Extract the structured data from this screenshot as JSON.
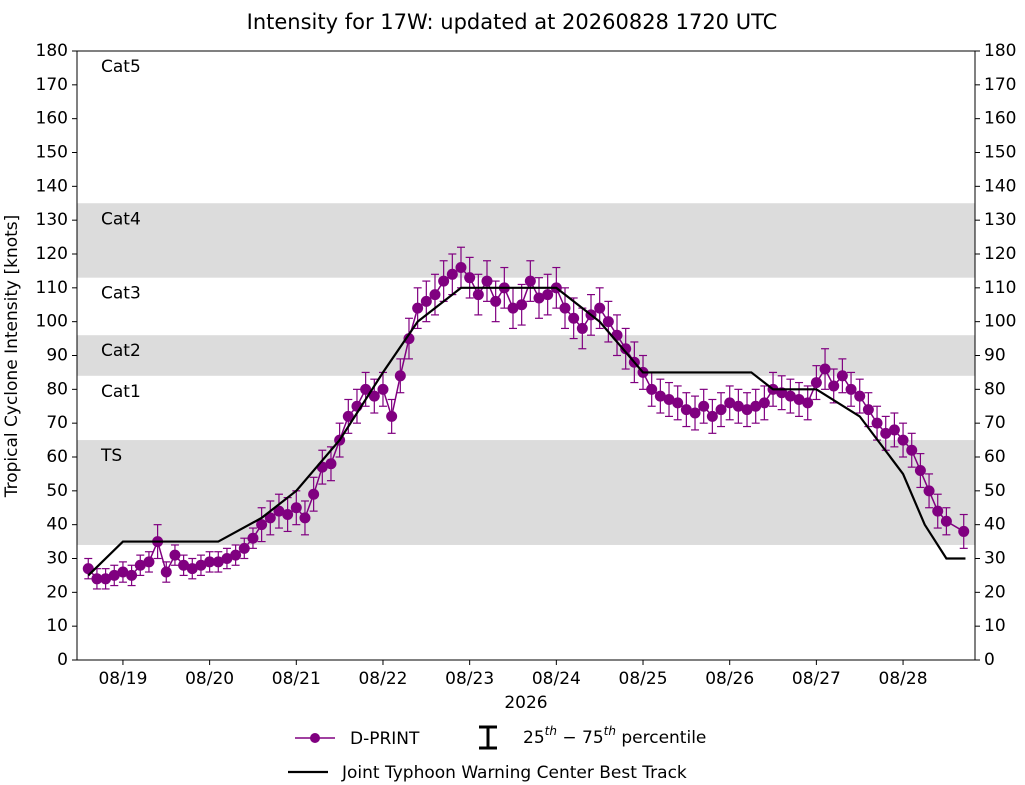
{
  "chart_data": {
    "type": "errorbar",
    "title": "Intensity for 17W: updated at 20260828 1720 UTC",
    "y_label": "Tropical Cyclone Intensity [knots]",
    "x_label": "2026",
    "xlim": [
      18.47,
      28.83
    ],
    "xticks": [
      {
        "value": 19,
        "label": "08/19"
      },
      {
        "value": 20,
        "label": "08/20"
      },
      {
        "value": 21,
        "label": "08/21"
      },
      {
        "value": 22,
        "label": "08/22"
      },
      {
        "value": 23,
        "label": "08/23"
      },
      {
        "value": 24,
        "label": "08/24"
      },
      {
        "value": 25,
        "label": "08/25"
      },
      {
        "value": 26,
        "label": "08/26"
      },
      {
        "value": 27,
        "label": "08/27"
      },
      {
        "value": 28,
        "label": "08/28"
      }
    ],
    "ylim": [
      0,
      180
    ],
    "yticks": [
      0,
      10,
      20,
      30,
      40,
      50,
      60,
      70,
      80,
      90,
      100,
      110,
      120,
      130,
      140,
      150,
      160,
      170,
      180
    ],
    "intensity_bands": [
      {
        "label": "TS",
        "range": [
          34,
          65
        ],
        "shaded": true
      },
      {
        "label": "Cat1",
        "range": [
          65,
          84
        ],
        "shaded": false
      },
      {
        "label": "Cat2",
        "range": [
          84,
          96
        ],
        "shaded": true
      },
      {
        "label": "Cat3",
        "range": [
          96,
          113
        ],
        "shaded": false
      },
      {
        "label": "Cat4",
        "range": [
          113,
          135
        ],
        "shaded": true
      },
      {
        "label": "Cat5",
        "range": [
          135,
          180
        ],
        "shaded": false
      }
    ],
    "band_color": "#dcdcdc",
    "series": [
      {
        "name": "D-PRINT",
        "color": "#800080",
        "x": [
          18.6,
          18.7,
          18.8,
          18.9,
          19.0,
          19.1,
          19.2,
          19.3,
          19.4,
          19.5,
          19.6,
          19.7,
          19.8,
          19.9,
          20.0,
          20.1,
          20.2,
          20.3,
          20.4,
          20.5,
          20.6,
          20.7,
          20.8,
          20.9,
          21.0,
          21.1,
          21.2,
          21.3,
          21.4,
          21.5,
          21.6,
          21.7,
          21.8,
          21.9,
          22.0,
          22.1,
          22.2,
          22.3,
          22.4,
          22.5,
          22.6,
          22.7,
          22.8,
          22.9,
          23.0,
          23.1,
          23.2,
          23.3,
          23.4,
          23.5,
          23.6,
          23.7,
          23.8,
          23.9,
          24.0,
          24.1,
          24.2,
          24.3,
          24.4,
          24.5,
          24.6,
          24.7,
          24.8,
          24.9,
          25.0,
          25.1,
          25.2,
          25.3,
          25.4,
          25.5,
          25.6,
          25.7,
          25.8,
          25.9,
          26.0,
          26.1,
          26.2,
          26.3,
          26.4,
          26.5,
          26.6,
          26.7,
          26.8,
          26.9,
          27.0,
          27.1,
          27.2,
          27.3,
          27.4,
          27.5,
          27.6,
          27.7,
          27.8,
          27.9,
          28.0,
          28.1,
          28.2,
          28.3,
          28.4,
          28.5,
          28.7
        ],
        "values": [
          27,
          24,
          24,
          25,
          26,
          25,
          28,
          29,
          35,
          26,
          31,
          28,
          27,
          28,
          29,
          29,
          30,
          31,
          33,
          36,
          40,
          42,
          44,
          43,
          45,
          42,
          49,
          57,
          58,
          65,
          72,
          75,
          80,
          78,
          80,
          72,
          84,
          95,
          104,
          106,
          108,
          112,
          114,
          116,
          113,
          108,
          112,
          106,
          110,
          104,
          105,
          112,
          107,
          108,
          110,
          104,
          101,
          98,
          102,
          104,
          100,
          96,
          92,
          88,
          85,
          80,
          78,
          77,
          76,
          74,
          73,
          75,
          72,
          74,
          76,
          75,
          74,
          75,
          76,
          80,
          79,
          78,
          77,
          76,
          82,
          86,
          81,
          84,
          80,
          78,
          74,
          70,
          67,
          68,
          65,
          62,
          56,
          50,
          44,
          41,
          38
        ],
        "error": [
          3,
          3,
          3,
          3,
          3,
          3,
          3,
          3,
          5,
          3,
          3,
          3,
          3,
          3,
          3,
          3,
          3,
          3,
          3,
          3,
          5,
          5,
          5,
          5,
          5,
          5,
          5,
          5,
          5,
          5,
          5,
          5,
          5,
          5,
          5,
          5,
          5,
          6,
          6,
          6,
          6,
          6,
          6,
          6,
          6,
          6,
          6,
          6,
          6,
          6,
          6,
          6,
          6,
          6,
          6,
          6,
          6,
          6,
          6,
          6,
          6,
          6,
          6,
          6,
          5,
          5,
          5,
          5,
          5,
          5,
          5,
          5,
          5,
          5,
          5,
          5,
          5,
          5,
          5,
          5,
          5,
          5,
          5,
          5,
          5,
          6,
          5,
          5,
          5,
          5,
          5,
          5,
          5,
          5,
          5,
          5,
          5,
          5,
          5,
          4,
          5
        ]
      },
      {
        "name": "Joint Typhoon Warning Center Best Track",
        "color": "#000000",
        "x": [
          18.6,
          19.0,
          20.1,
          20.6,
          21.0,
          21.5,
          22.0,
          22.4,
          22.9,
          24.0,
          24.5,
          25.0,
          26.25,
          26.5,
          27.0,
          27.5,
          28.0,
          28.25,
          28.5,
          28.72
        ],
        "values": [
          25,
          35,
          35,
          42,
          50,
          65,
          85,
          100,
          110,
          110,
          100,
          85,
          85,
          80,
          80,
          72,
          55,
          40,
          30,
          30
        ]
      }
    ],
    "percentile_legend": [
      "25",
      "th",
      " − 75",
      "th",
      " percentile"
    ]
  }
}
